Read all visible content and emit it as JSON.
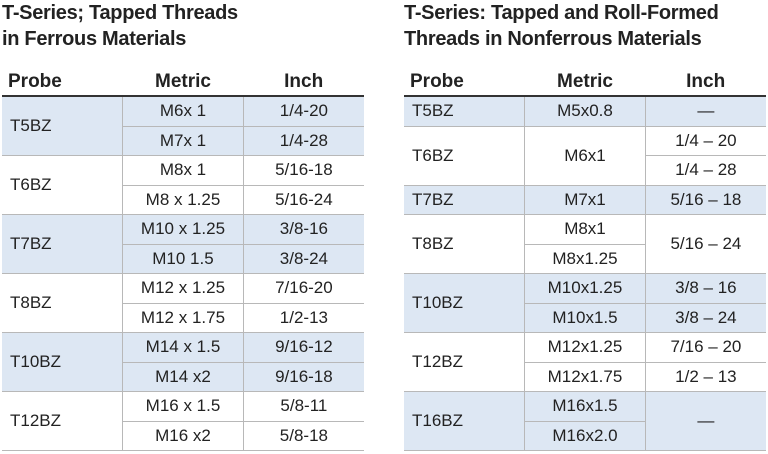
{
  "tables": [
    {
      "title": [
        "T-Series; Tapped Threads",
        "in Ferrous Materials"
      ],
      "headers": [
        "Probe",
        "Metric",
        "Inch"
      ],
      "groups": [
        {
          "probe": "T5BZ",
          "metric": [
            "M6x 1",
            "M7x 1"
          ],
          "inch": [
            "1/4-20",
            "1/4-28"
          ]
        },
        {
          "probe": "T6BZ",
          "metric": [
            "M8x 1",
            "M8 x 1.25"
          ],
          "inch": [
            "5/16-18",
            "5/16-24"
          ]
        },
        {
          "probe": "T7BZ",
          "metric": [
            "M10 x 1.25",
            "M10 1.5"
          ],
          "inch": [
            "3/8-16",
            "3/8-24"
          ]
        },
        {
          "probe": "T8BZ",
          "metric": [
            "M12 x 1.25",
            "M12 x 1.75"
          ],
          "inch": [
            "7/16-20",
            "1/2-13"
          ]
        },
        {
          "probe": "T10BZ",
          "metric": [
            "M14 x 1.5",
            "M14 x2"
          ],
          "inch": [
            "9/16-12",
            "9/16-18"
          ]
        },
        {
          "probe": "T12BZ",
          "metric": [
            "M16 x 1.5",
            "M16 x2"
          ],
          "inch": [
            "5/8-11",
            "5/8-18"
          ]
        }
      ]
    },
    {
      "title": [
        "T-Series: Tapped and Roll-Formed",
        "Threads in Nonferrous Materials"
      ],
      "headers": [
        "Probe",
        "Metric",
        "Inch"
      ],
      "groups": [
        {
          "probe": "T5BZ",
          "metric": [
            "M5x0.8"
          ],
          "inch": [
            "—"
          ]
        },
        {
          "probe": "T6BZ",
          "metric": [
            "M6x1"
          ],
          "inch": [
            "1/4 – 20",
            "1/4 – 28"
          ]
        },
        {
          "probe": "T7BZ",
          "metric": [
            "M7x1"
          ],
          "inch": [
            "5/16 – 18"
          ]
        },
        {
          "probe": "T8BZ",
          "metric": [
            "M8x1",
            "M8x1.25"
          ],
          "inch": [
            "5/16 – 24"
          ]
        },
        {
          "probe": "T10BZ",
          "metric": [
            "M10x1.25",
            "M10x1.5"
          ],
          "inch": [
            "3/8 – 16",
            "3/8 – 24"
          ]
        },
        {
          "probe": "T12BZ",
          "metric": [
            "M12x1.25",
            "M12x1.75"
          ],
          "inch": [
            "7/16 – 20",
            "1/2 – 13"
          ]
        },
        {
          "probe": "T16BZ",
          "metric": [
            "M16x1.5",
            "M16x2.0"
          ],
          "inch": [
            "—"
          ]
        }
      ]
    }
  ]
}
